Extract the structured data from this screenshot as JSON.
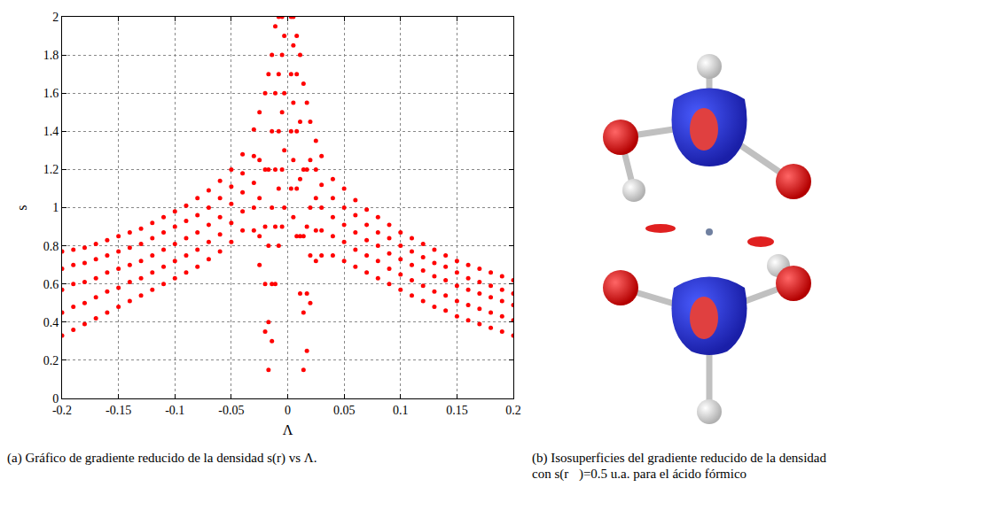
{
  "chart_data": {
    "type": "scatter",
    "xlabel": "Λ",
    "ylabel": "s",
    "color": "#ff0000",
    "marker": "circle",
    "grid": true,
    "xlim": [
      -0.2,
      0.2
    ],
    "ylim": [
      0,
      2
    ],
    "xticks": [
      -0.2,
      -0.15,
      -0.1,
      -0.05,
      0,
      0.05,
      0.1,
      0.15,
      0.2
    ],
    "yticks": [
      0,
      0.2,
      0.4,
      0.6,
      0.8,
      1,
      1.2,
      1.4,
      1.6,
      1.8,
      2
    ],
    "x": [
      -0.2,
      -0.2,
      -0.2,
      -0.2,
      -0.2,
      -0.19,
      -0.19,
      -0.19,
      -0.19,
      -0.19,
      -0.18,
      -0.18,
      -0.18,
      -0.18,
      -0.18,
      -0.17,
      -0.17,
      -0.17,
      -0.17,
      -0.17,
      -0.16,
      -0.16,
      -0.16,
      -0.16,
      -0.16,
      -0.15,
      -0.15,
      -0.15,
      -0.15,
      -0.15,
      -0.14,
      -0.14,
      -0.14,
      -0.14,
      -0.14,
      -0.13,
      -0.13,
      -0.13,
      -0.13,
      -0.13,
      -0.12,
      -0.12,
      -0.12,
      -0.12,
      -0.12,
      -0.11,
      -0.11,
      -0.11,
      -0.11,
      -0.11,
      -0.1,
      -0.1,
      -0.1,
      -0.1,
      -0.1,
      -0.09,
      -0.09,
      -0.09,
      -0.09,
      -0.09,
      -0.08,
      -0.08,
      -0.08,
      -0.08,
      -0.08,
      -0.07,
      -0.07,
      -0.07,
      -0.07,
      -0.07,
      -0.06,
      -0.06,
      -0.06,
      -0.06,
      -0.06,
      -0.05,
      -0.05,
      -0.05,
      -0.05,
      -0.05,
      -0.04,
      -0.04,
      -0.04,
      -0.04,
      -0.04,
      -0.03,
      -0.03,
      -0.03,
      -0.03,
      -0.03,
      -0.025,
      -0.025,
      -0.025,
      -0.025,
      -0.025,
      -0.02,
      -0.02,
      -0.02,
      -0.02,
      -0.02,
      -0.017,
      -0.017,
      -0.017,
      -0.017,
      -0.017,
      -0.014,
      -0.014,
      -0.014,
      -0.014,
      -0.014,
      -0.011,
      -0.011,
      -0.011,
      -0.011,
      -0.011,
      -0.008,
      -0.008,
      -0.008,
      -0.008,
      -0.008,
      -0.005,
      -0.005,
      -0.005,
      -0.005,
      -0.005,
      -0.003,
      -0.003,
      -0.003,
      -0.003,
      0.003,
      0.003,
      0.003,
      0.003,
      0.005,
      0.005,
      0.005,
      0.005,
      0.005,
      0.008,
      0.008,
      0.008,
      0.008,
      0.008,
      0.011,
      0.011,
      0.011,
      0.011,
      0.011,
      0.014,
      0.014,
      0.014,
      0.014,
      0.014,
      0.017,
      0.017,
      0.017,
      0.017,
      0.017,
      0.02,
      0.02,
      0.02,
      0.02,
      0.02,
      0.025,
      0.025,
      0.025,
      0.025,
      0.025,
      0.03,
      0.03,
      0.03,
      0.03,
      0.03,
      0.04,
      0.04,
      0.04,
      0.04,
      0.04,
      0.05,
      0.05,
      0.05,
      0.05,
      0.05,
      0.06,
      0.06,
      0.06,
      0.06,
      0.06,
      0.07,
      0.07,
      0.07,
      0.07,
      0.07,
      0.08,
      0.08,
      0.08,
      0.08,
      0.08,
      0.09,
      0.09,
      0.09,
      0.09,
      0.09,
      0.1,
      0.1,
      0.1,
      0.1,
      0.1,
      0.11,
      0.11,
      0.11,
      0.11,
      0.11,
      0.12,
      0.12,
      0.12,
      0.12,
      0.12,
      0.13,
      0.13,
      0.13,
      0.13,
      0.13,
      0.14,
      0.14,
      0.14,
      0.14,
      0.14,
      0.15,
      0.15,
      0.15,
      0.15,
      0.15,
      0.16,
      0.16,
      0.16,
      0.16,
      0.16,
      0.17,
      0.17,
      0.17,
      0.17,
      0.17,
      0.18,
      0.18,
      0.18,
      0.18,
      0.18,
      0.19,
      0.19,
      0.19,
      0.19,
      0.19,
      0.2,
      0.2,
      0.2,
      0.2,
      0.2
    ],
    "values": [
      0.33,
      0.45,
      0.57,
      0.68,
      0.77,
      0.36,
      0.48,
      0.6,
      0.7,
      0.78,
      0.39,
      0.5,
      0.61,
      0.71,
      0.79,
      0.42,
      0.53,
      0.63,
      0.73,
      0.81,
      0.45,
      0.56,
      0.66,
      0.75,
      0.83,
      0.48,
      0.58,
      0.68,
      0.77,
      0.85,
      0.51,
      0.61,
      0.7,
      0.79,
      0.87,
      0.54,
      0.63,
      0.72,
      0.81,
      0.89,
      0.57,
      0.66,
      0.75,
      0.84,
      0.92,
      0.6,
      0.69,
      0.78,
      0.87,
      0.95,
      0.63,
      0.72,
      0.81,
      0.9,
      0.98,
      0.66,
      0.75,
      0.84,
      0.93,
      1.01,
      0.69,
      0.78,
      0.87,
      0.96,
      1.05,
      0.73,
      0.82,
      0.91,
      1.0,
      1.09,
      0.77,
      0.86,
      0.95,
      1.05,
      1.14,
      0.82,
      0.92,
      1.02,
      1.11,
      1.2,
      0.88,
      0.98,
      1.08,
      1.18,
      1.28,
      0.88,
      1.0,
      1.13,
      1.27,
      1.41,
      0.7,
      0.85,
      1.05,
      1.25,
      1.5,
      0.35,
      0.6,
      0.9,
      1.2,
      1.6,
      0.15,
      0.4,
      0.8,
      1.2,
      1.7,
      0.3,
      0.6,
      1.0,
      1.4,
      1.8,
      0.6,
      0.9,
      1.2,
      1.6,
      1.95,
      0.8,
      1.1,
      1.4,
      1.7,
      2.0,
      0.9,
      1.2,
      1.5,
      1.8,
      2.0,
      1.0,
      1.3,
      1.6,
      1.9,
      1.1,
      1.4,
      1.7,
      2.0,
      0.95,
      1.25,
      1.55,
      1.85,
      2.0,
      0.85,
      1.1,
      1.4,
      1.7,
      1.9,
      0.55,
      0.85,
      1.15,
      1.45,
      1.8,
      0.15,
      0.45,
      0.85,
      1.2,
      1.65,
      0.25,
      0.55,
      0.9,
      1.2,
      1.55,
      0.5,
      0.75,
      1.0,
      1.25,
      1.45,
      0.72,
      0.88,
      1.05,
      1.2,
      1.35,
      0.75,
      0.88,
      1.0,
      1.12,
      1.27,
      0.75,
      0.85,
      0.95,
      1.05,
      1.15,
      0.72,
      0.82,
      0.91,
      1.0,
      1.1,
      0.69,
      0.78,
      0.87,
      0.96,
      1.04,
      0.66,
      0.75,
      0.83,
      0.91,
      0.99,
      0.63,
      0.72,
      0.8,
      0.87,
      0.95,
      0.6,
      0.68,
      0.76,
      0.84,
      0.91,
      0.57,
      0.65,
      0.73,
      0.8,
      0.87,
      0.54,
      0.62,
      0.7,
      0.77,
      0.84,
      0.51,
      0.59,
      0.67,
      0.74,
      0.81,
      0.48,
      0.56,
      0.64,
      0.71,
      0.78,
      0.46,
      0.54,
      0.62,
      0.69,
      0.75,
      0.43,
      0.51,
      0.59,
      0.66,
      0.72,
      0.41,
      0.49,
      0.57,
      0.63,
      0.7,
      0.39,
      0.47,
      0.55,
      0.61,
      0.68,
      0.37,
      0.45,
      0.53,
      0.59,
      0.66,
      0.35,
      0.43,
      0.51,
      0.57,
      0.64,
      0.33,
      0.41,
      0.49,
      0.55,
      0.62
    ]
  },
  "captions": [
    "(a) Gráfico de gradiente reducido de la densidad s(r) vs Λ.",
    "(b) Isosuperficies del gradiente reducido de la densidad con s(r⃗)=0.5 u.a. para el ácido fórmico"
  ]
}
